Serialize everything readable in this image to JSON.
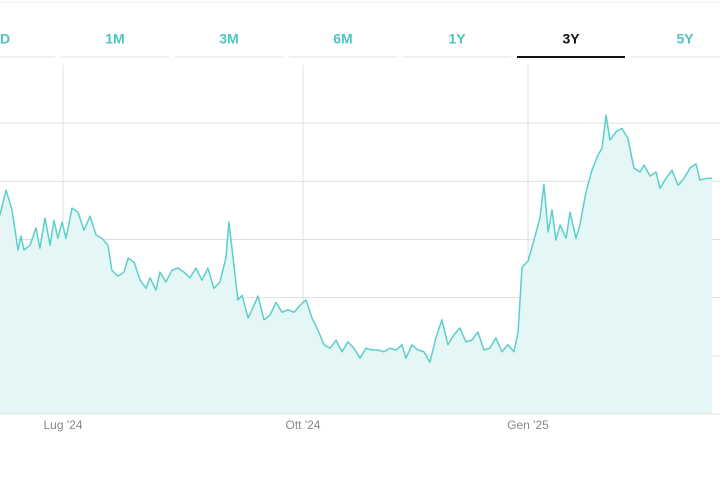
{
  "tabs": [
    "D",
    "1M",
    "3M",
    "6M",
    "1Y",
    "3Y",
    "5Y"
  ],
  "selected_tab": 5,
  "chart_data": {
    "type": "area",
    "x": [
      0,
      2,
      4,
      6,
      7,
      8,
      10,
      12,
      13.3,
      15,
      16.7,
      18,
      19.3,
      20.7,
      22,
      24,
      26,
      28,
      30,
      32,
      34,
      36,
      37.3,
      39.3,
      41.3,
      42.7,
      44.7,
      46.7,
      48.7,
      50,
      52,
      53.3,
      55.3,
      57.3,
      59.3,
      61.3,
      63.3,
      65.3,
      67.3,
      69.3,
      71.3,
      73.3,
      75.3,
      76.3,
      77.7,
      79.3,
      80.7,
      82.7,
      84.7,
      86,
      88,
      90,
      92,
      94,
      96,
      98,
      100,
      102,
      104,
      106,
      108,
      110,
      112,
      114,
      116,
      118,
      120,
      122,
      124,
      126,
      128,
      130,
      132,
      134,
      135.3,
      137.3,
      139.3,
      141.3,
      143.3,
      145.3,
      147.3,
      149.3,
      151.3,
      153.3,
      155.3,
      157.3,
      159.3,
      161.3,
      163.3,
      165.3,
      167.3,
      169.3,
      171.3,
      172.7,
      174,
      176,
      178,
      180,
      181.3,
      182.7,
      184,
      185.3,
      186.7,
      188.7,
      190,
      192,
      193.3,
      195.3,
      197.3,
      199.3,
      200.7,
      202,
      203.3,
      205.3,
      207.3,
      209.3,
      211.3,
      213.3,
      214.7,
      216.7,
      218.7,
      220,
      222,
      224,
      226,
      228,
      230,
      232,
      233.3,
      235.3,
      237.3
    ],
    "series": [
      {
        "color": "#5ccfca",
        "fill": "#e4f7f6",
        "values": [
          3.42,
          3.85,
          3.51,
          2.82,
          3.06,
          2.82,
          2.9,
          3.2,
          2.85,
          3.37,
          2.9,
          3.33,
          3.02,
          3.3,
          3.02,
          3.54,
          3.47,
          3.16,
          3.4,
          3.08,
          3.02,
          2.9,
          2.47,
          2.37,
          2.44,
          2.68,
          2.61,
          2.3,
          2.16,
          2.34,
          2.13,
          2.44,
          2.27,
          2.47,
          2.51,
          2.44,
          2.34,
          2.51,
          2.3,
          2.51,
          2.16,
          2.27,
          2.68,
          3.3,
          2.68,
          1.96,
          2.04,
          1.65,
          1.87,
          2.03,
          1.62,
          1.7,
          1.92,
          1.75,
          1.79,
          1.75,
          1.87,
          1.96,
          1.65,
          1.44,
          1.19,
          1.13,
          1.27,
          1.07,
          1.24,
          1.13,
          0.96,
          1.13,
          1.1,
          1.1,
          1.07,
          1.13,
          1.1,
          1.19,
          0.96,
          1.19,
          1.1,
          1.07,
          0.89,
          1.31,
          1.62,
          1.19,
          1.36,
          1.48,
          1.24,
          1.27,
          1.41,
          1.1,
          1.13,
          1.31,
          1.07,
          1.19,
          1.07,
          1.41,
          2.52,
          2.63,
          2.99,
          3.37,
          3.95,
          3.13,
          3.51,
          2.99,
          3.25,
          3.02,
          3.47,
          3.02,
          3.25,
          3.81,
          4.19,
          4.45,
          4.57,
          5.14,
          4.71,
          4.85,
          4.91,
          4.74,
          4.23,
          4.16,
          4.28,
          4.09,
          4.16,
          3.88,
          4.05,
          4.19,
          3.93,
          4.05,
          4.23,
          4.3,
          4.02,
          4.05,
          4.05
        ]
      }
    ],
    "xlim": [
      0,
      238
    ],
    "xticks": [
      {
        "value": 21,
        "label": "Lug '24"
      },
      {
        "value": 101,
        "label": "Ott '24"
      },
      {
        "value": 176,
        "label": "Gen '25"
      }
    ],
    "ylim": [
      0,
      6
    ],
    "yticks": [
      1,
      2,
      3,
      4,
      5
    ],
    "grid": true
  }
}
